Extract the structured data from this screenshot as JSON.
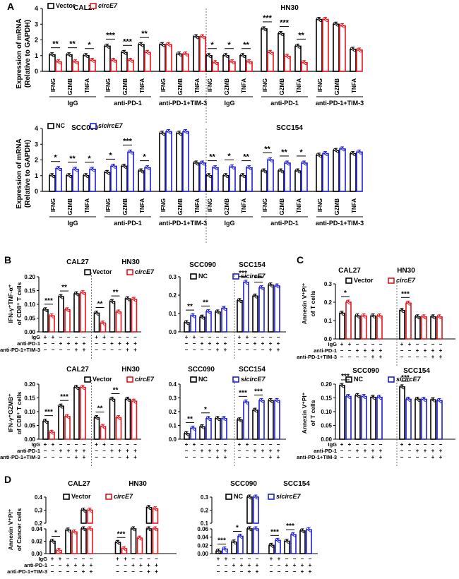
{
  "colors": {
    "control": "#000000",
    "circE7": "#e8141d",
    "sicircE7": "#1d1dd8"
  },
  "chart_data": [
    {
      "panel": "A",
      "cell_lines": [
        "CAL27",
        "HN30"
      ],
      "type": "bar",
      "ylabel_line1": "Expression of mRNA",
      "ylabel_line2": "(Relative to GAPDH)",
      "ylim": [
        0,
        4
      ],
      "yticks": [
        "0",
        "1",
        "2",
        "3",
        "4"
      ],
      "genes": [
        "IFNG",
        "GZMB",
        "TNFA"
      ],
      "groups": [
        "IgG",
        "anti-PD-1",
        "anti-PD-1+TIM-3"
      ],
      "legend": [
        "Vector",
        "circE7"
      ],
      "series": [
        {
          "name": "Vector",
          "values": [
            [
              1.05,
              1.05,
              1.0,
              1.6,
              1.2,
              1.7,
              1.7,
              1.1,
              2.2
            ],
            [
              1.0,
              1.0,
              1.0,
              2.7,
              2.4,
              1.6,
              3.3,
              3.0,
              1.4
            ]
          ]
        },
        {
          "name": "circE7",
          "values": [
            [
              0.6,
              0.6,
              0.7,
              0.7,
              0.7,
              1.2,
              1.7,
              1.1,
              2.2
            ],
            [
              0.55,
              0.6,
              0.6,
              1.2,
              0.95,
              0.55,
              3.3,
              2.9,
              1.35
            ]
          ]
        }
      ],
      "significance": [
        [
          "**",
          "**",
          "*",
          "***",
          "***",
          "**",
          "",
          "",
          ""
        ],
        [
          "*",
          "*",
          "**",
          "***",
          "***",
          "**",
          "",
          "",
          ""
        ]
      ]
    },
    {
      "panel": "A",
      "cell_lines": [
        "SCC090",
        "SCC154"
      ],
      "type": "bar",
      "ylabel_line1": "Expression of mRNA",
      "ylabel_line2": "(Relative to GAPDH)",
      "ylim": [
        0,
        4
      ],
      "yticks": [
        "0",
        "1",
        "2",
        "3",
        "4"
      ],
      "genes": [
        "IFNG",
        "GZMB",
        "TNFA"
      ],
      "groups": [
        "IgG",
        "anti-PD-1",
        "anti-PD-1+TIM-3"
      ],
      "legend": [
        "NC",
        "sicircE7"
      ],
      "series": [
        {
          "name": "NC",
          "values": [
            [
              1.0,
              1.0,
              1.0,
              1.2,
              1.6,
              1.3,
              3.7,
              3.7,
              1.8
            ],
            [
              1.0,
              1.0,
              1.0,
              1.3,
              1.3,
              1.3,
              2.3,
              2.6,
              2.4
            ]
          ]
        },
        {
          "name": "sicircE7",
          "values": [
            [
              1.45,
              1.4,
              1.4,
              1.6,
              2.5,
              1.5,
              3.8,
              3.8,
              1.8
            ],
            [
              1.5,
              1.55,
              1.5,
              2.0,
              1.8,
              1.8,
              2.4,
              2.7,
              2.5
            ]
          ]
        }
      ],
      "significance": [
        [
          "*",
          "**",
          "*",
          "*",
          "***",
          "*",
          "",
          "",
          ""
        ],
        [
          "**",
          "*",
          "**",
          "**",
          "**",
          "*",
          "",
          "",
          ""
        ]
      ]
    },
    {
      "panel": "B",
      "cell_lines": [
        "CAL27",
        "HN30"
      ],
      "type": "bar",
      "ylabel_line1": "IFN-γ⁺TNF-α⁺",
      "ylabel_line2": "of CD8⁺ T cells",
      "ylim": [
        0,
        0.2
      ],
      "yticks": [
        "0.00",
        "0.05",
        "0.10",
        "0.15",
        "0.20"
      ],
      "legend": [
        "Vector",
        "circE7"
      ],
      "values": [
        [
          0.08,
          0.058,
          0.128,
          0.08,
          0.138,
          0.142
        ],
        [
          0.068,
          0.032,
          0.11,
          0.072,
          0.12,
          0.118
        ]
      ],
      "significance": [
        [
          "***",
          "**",
          ""
        ],
        [
          "**",
          "**",
          ""
        ]
      ]
    },
    {
      "panel": "B",
      "cell_lines": [
        "SCC090",
        "SCC154"
      ],
      "type": "bar",
      "ylabel_line1": "",
      "ylabel_line2": "",
      "ylim": [
        0,
        0.3
      ],
      "yticks": [
        "0.0",
        "0.1",
        "0.2",
        "0.3"
      ],
      "legend": [
        "NC",
        "sicircE7"
      ],
      "values": [
        [
          0.05,
          0.088,
          0.08,
          0.11,
          0.108,
          0.128
        ],
        [
          0.17,
          0.27,
          0.195,
          0.24,
          0.255,
          0.25
        ]
      ],
      "significance": [
        [
          "**",
          "**",
          ""
        ],
        [
          "***",
          "***",
          ""
        ]
      ]
    },
    {
      "panel": "B2",
      "cell_lines": [
        "CAL27",
        "HN30"
      ],
      "type": "bar",
      "ylabel_line1": "IFN-γ⁺GZMB⁺",
      "ylabel_line2": "of CD8⁺ T cells",
      "ylim": [
        0,
        0.2
      ],
      "yticks": [
        "0.00",
        "0.05",
        "0.10",
        "0.15",
        "0.20"
      ],
      "legend": [
        "Vector",
        "circE7"
      ],
      "values": [
        [
          0.065,
          0.025,
          0.12,
          0.082,
          0.188,
          0.188
        ],
        [
          0.078,
          0.046,
          0.145,
          0.078,
          0.145,
          0.138
        ]
      ],
      "significance": [
        [
          "***",
          "***",
          ""
        ],
        [
          "**",
          "**",
          ""
        ]
      ]
    },
    {
      "panel": "B2",
      "cell_lines": [
        "SCC090",
        "SCC154"
      ],
      "type": "bar",
      "ylabel_line1": "",
      "ylabel_line2": "",
      "ylim": [
        0,
        0.4
      ],
      "yticks": [
        "0.0",
        "0.1",
        "0.2",
        "0.3",
        "0.4"
      ],
      "legend": [
        "NC",
        "sicircE7"
      ],
      "values": [
        [
          0.04,
          0.08,
          0.09,
          0.15,
          0.15,
          0.15
        ],
        [
          0.14,
          0.27,
          0.21,
          0.28,
          0.28,
          0.28
        ]
      ],
      "significance": [
        [
          "**",
          "*",
          ""
        ],
        [
          "***",
          "***",
          ""
        ]
      ]
    },
    {
      "panel": "C",
      "cell_lines": [
        "CAL27",
        "HN30"
      ],
      "type": "bar",
      "ylabel_line1": "Annexin V⁺PI⁺",
      "ylabel_line2": "of T cells",
      "ylim": [
        0,
        0.3
      ],
      "yticks": [
        "0.0",
        "0.1",
        "0.2",
        "0.3"
      ],
      "legend": [
        "Vector",
        "circE7"
      ],
      "values": [
        [
          0.14,
          0.2,
          0.125,
          0.125,
          0.125,
          0.125
        ],
        [
          0.155,
          0.195,
          0.12,
          0.12,
          0.12,
          0.12
        ]
      ],
      "significance": [
        [
          "*",
          "",
          ""
        ],
        [
          "***",
          "",
          ""
        ]
      ]
    },
    {
      "panel": "C",
      "cell_lines": [
        "SCC090",
        "SCC154"
      ],
      "type": "bar",
      "ylabel_line1": "Annexin V⁺PI⁺",
      "ylabel_line2": "of T cells",
      "ylim": [
        0,
        0.2
      ],
      "yticks": [
        "0.00",
        "0.05",
        "0.10",
        "0.15",
        "0.20"
      ],
      "legend": [
        "NC",
        "sicircE7"
      ],
      "values": [
        [
          0.195,
          0.155,
          0.158,
          0.155,
          0.152,
          0.152
        ],
        [
          0.19,
          0.145,
          0.145,
          0.145,
          0.143,
          0.14
        ]
      ],
      "significance": [
        [
          "***",
          "",
          ""
        ],
        [
          "***",
          "",
          ""
        ]
      ]
    },
    {
      "panel": "D",
      "cell_lines": [
        "CAL27",
        "HN30"
      ],
      "type": "bar",
      "ylabel_line1": "Annexin V⁺PI⁺",
      "ylabel_line2": "of Cancer cells",
      "broken_axis": true,
      "yticks_low": [
        "0.00",
        "0.02",
        "0.04"
      ],
      "yticks_high": [
        "0.2",
        "0.3",
        "0.4"
      ],
      "legend": [
        "Vector",
        "circE7"
      ],
      "values": [
        [
          0.02,
          0.005,
          0.038,
          0.035,
          0.3,
          0.3
        ],
        [
          0.018,
          0.008,
          0.04,
          0.025,
          0.32,
          0.31
        ]
      ],
      "significance": [
        [
          "*",
          "",
          ""
        ],
        [
          "***",
          "",
          ""
        ]
      ]
    },
    {
      "panel": "D",
      "cell_lines": [
        "SCC090",
        "SCC154"
      ],
      "type": "bar",
      "ylabel_line1": "",
      "ylabel_line2": "",
      "broken_axis": true,
      "yticks_low": [
        "0.00",
        "0.02",
        "0.04",
        "0.06"
      ],
      "yticks_high": [
        "0.1",
        "0.2",
        "0.3"
      ],
      "legend": [
        "NC",
        "sicircE7"
      ],
      "values": [
        [
          0.006,
          0.011,
          0.028,
          0.042,
          0.3,
          0.3
        ],
        [
          0.02,
          0.032,
          0.03,
          0.046,
          0.055,
          0.058
        ]
      ],
      "significance": [
        [
          "***",
          "*",
          ""
        ],
        [
          "***",
          "***",
          ""
        ]
      ]
    }
  ],
  "labels": {
    "A": "A",
    "B": "B",
    "C": "C",
    "D": "D",
    "IgG": "IgG",
    "antiPD1": "anti-PD-1",
    "antiPD1TIM3": "anti-PD-1+TIM-3",
    "plus": "+",
    "minus": "−"
  }
}
